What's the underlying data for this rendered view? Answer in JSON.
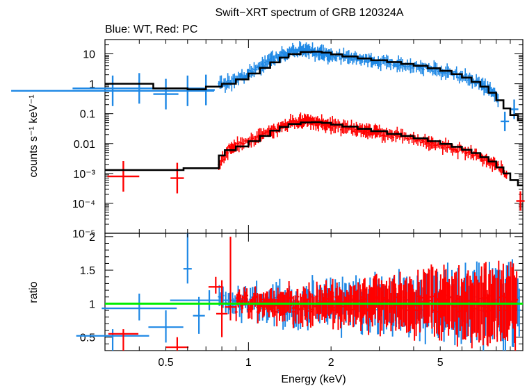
{
  "chart_data": {
    "type": "scatter",
    "title": "Swift−XRT spectrum of GRB 120324A",
    "subtitle": "Blue: WT, Red: PC",
    "xlabel": "Energy (keV)",
    "xscale": "log",
    "xlim": [
      0.3,
      10
    ],
    "x_ticks": [
      {
        "value": 0.5,
        "label": "0.5"
      },
      {
        "value": 1,
        "label": "1"
      },
      {
        "value": 2,
        "label": "2"
      },
      {
        "value": 5,
        "label": "5"
      }
    ],
    "colors": {
      "wt": "#1e88e5",
      "pc": "#ff0000",
      "model": "#000000",
      "unity": "#00ee00"
    },
    "panels": {
      "spectrum": {
        "ylabel": "counts s⁻¹ keV⁻¹",
        "yscale": "log",
        "ylim": [
          1e-05,
          30
        ],
        "y_ticks": [
          {
            "value": 10,
            "label": "10"
          },
          {
            "value": 1,
            "label": "1"
          },
          {
            "value": 0.1,
            "label": "0.1"
          },
          {
            "value": 0.01,
            "label": "0.01"
          },
          {
            "value": 0.001,
            "label": "10⁻³"
          },
          {
            "value": 0.0001,
            "label": "10⁻⁴"
          },
          {
            "value": 1e-05,
            "label": "10⁻⁵"
          }
        ],
        "series": [
          {
            "color_key": "wt",
            "kind": "binned",
            "low": [
              [
                0.32,
                0.58,
                0.75
              ],
              [
                0.4,
                0.7,
                0.7
              ],
              [
                0.5,
                0.45,
                0.45
              ],
              [
                0.6,
                0.58,
                0.58
              ],
              [
                0.7,
                0.62,
                0.65
              ]
            ],
            "points": [
              [
                0.78,
                0.9
              ],
              [
                0.85,
                1.1
              ],
              [
                0.93,
                1.6
              ],
              [
                1.0,
                2.2
              ],
              [
                1.1,
                3.5
              ],
              [
                1.2,
                6.0
              ],
              [
                1.3,
                9.0
              ],
              [
                1.4,
                11
              ],
              [
                1.5,
                12
              ],
              [
                1.6,
                13
              ],
              [
                1.7,
                12
              ],
              [
                1.8,
                11
              ],
              [
                1.9,
                10
              ],
              [
                2.0,
                9
              ],
              [
                2.2,
                8
              ],
              [
                2.4,
                7.5
              ],
              [
                2.6,
                6.5
              ],
              [
                2.8,
                6
              ],
              [
                3.0,
                5.5
              ],
              [
                3.3,
                5
              ],
              [
                3.6,
                4.6
              ],
              [
                4.0,
                4
              ],
              [
                4.4,
                3.5
              ],
              [
                4.8,
                3.0
              ],
              [
                5.3,
                2.5
              ],
              [
                5.8,
                2.0
              ],
              [
                6.4,
                1.5
              ],
              [
                7.0,
                1.0
              ],
              [
                7.6,
                0.6
              ],
              [
                8.2,
                0.3
              ]
            ],
            "tail": [
              [
                8.6,
                0.055
              ],
              [
                9.3,
                0.14
              ]
            ]
          },
          {
            "color_key": "pc",
            "kind": "binned",
            "low": [
              [
                0.35,
                0.0008,
                0.4
              ],
              [
                0.55,
                0.0007,
                0.52
              ]
            ],
            "points": [
              [
                0.78,
                0.0018
              ],
              [
                0.85,
                0.007
              ],
              [
                0.9,
                0.008
              ],
              [
                1.0,
                0.011
              ],
              [
                1.1,
                0.016
              ],
              [
                1.2,
                0.025
              ],
              [
                1.3,
                0.035
              ],
              [
                1.4,
                0.045
              ],
              [
                1.5,
                0.052
              ],
              [
                1.6,
                0.055
              ],
              [
                1.7,
                0.055
              ],
              [
                1.8,
                0.05
              ],
              [
                1.9,
                0.045
              ],
              [
                2.0,
                0.04
              ],
              [
                2.2,
                0.035
              ],
              [
                2.4,
                0.031
              ],
              [
                2.6,
                0.027
              ],
              [
                2.8,
                0.025
              ],
              [
                3.0,
                0.022
              ],
              [
                3.3,
                0.02
              ],
              [
                3.6,
                0.018
              ],
              [
                4.0,
                0.015
              ],
              [
                4.4,
                0.012
              ],
              [
                4.8,
                0.01
              ],
              [
                5.3,
                0.008
              ],
              [
                5.8,
                0.0065
              ],
              [
                6.4,
                0.005
              ],
              [
                7.0,
                0.0035
              ],
              [
                7.6,
                0.0025
              ],
              [
                8.2,
                0.0015
              ],
              [
                8.8,
                0.0009
              ]
            ],
            "tail": [
              [
                9.8,
                0.00012
              ]
            ]
          },
          {
            "color_key": "model",
            "kind": "step_model",
            "points": [
              [
                0.3,
                1.0
              ],
              [
                0.4,
                1.0
              ],
              [
                0.45,
                0.7
              ],
              [
                0.6,
                0.65
              ],
              [
                0.7,
                0.8
              ],
              [
                0.8,
                1.0
              ],
              [
                0.9,
                1.4
              ],
              [
                1.0,
                2.2
              ],
              [
                1.1,
                3.4
              ],
              [
                1.2,
                5.2
              ],
              [
                1.3,
                7.5
              ],
              [
                1.4,
                9.8
              ],
              [
                1.55,
                11.5
              ],
              [
                1.7,
                11.8
              ],
              [
                1.85,
                11
              ],
              [
                2.0,
                9.6
              ],
              [
                2.2,
                8.2
              ],
              [
                2.5,
                7.0
              ],
              [
                2.8,
                6.1
              ],
              [
                3.2,
                5.3
              ],
              [
                3.6,
                4.6
              ],
              [
                4.0,
                4.0
              ],
              [
                4.5,
                3.3
              ],
              [
                5.0,
                2.7
              ],
              [
                5.5,
                2.1
              ],
              [
                6.0,
                1.6
              ],
              [
                6.5,
                1.15
              ],
              [
                7.0,
                0.8
              ],
              [
                7.5,
                0.5
              ],
              [
                8.0,
                0.28
              ],
              [
                8.5,
                0.15
              ],
              [
                9.0,
                0.09
              ],
              [
                9.6,
                0.06
              ],
              [
                10,
                0.06
              ]
            ]
          },
          {
            "color_key": "model",
            "kind": "step_model",
            "points": [
              [
                0.3,
                0.0013
              ],
              [
                0.55,
                0.0013
              ],
              [
                0.58,
                0.0015
              ],
              [
                0.72,
                0.0015
              ],
              [
                0.78,
                0.004
              ],
              [
                0.82,
                0.006
              ],
              [
                0.9,
                0.008
              ],
              [
                1.0,
                0.012
              ],
              [
                1.1,
                0.018
              ],
              [
                1.2,
                0.027
              ],
              [
                1.3,
                0.036
              ],
              [
                1.4,
                0.045
              ],
              [
                1.55,
                0.051
              ],
              [
                1.7,
                0.052
              ],
              [
                1.85,
                0.049
              ],
              [
                2.0,
                0.043
              ],
              [
                2.2,
                0.037
              ],
              [
                2.5,
                0.031
              ],
              [
                2.8,
                0.026
              ],
              [
                3.2,
                0.021
              ],
              [
                3.6,
                0.018
              ],
              [
                4.0,
                0.015
              ],
              [
                4.5,
                0.012
              ],
              [
                5.0,
                0.0097
              ],
              [
                5.5,
                0.0078
              ],
              [
                6.0,
                0.0062
              ],
              [
                6.5,
                0.0048
              ],
              [
                7.0,
                0.0035
              ],
              [
                7.5,
                0.0025
              ],
              [
                8.0,
                0.0016
              ],
              [
                8.5,
                0.001
              ],
              [
                9.0,
                0.0006
              ],
              [
                9.6,
                0.0004
              ],
              [
                10,
                0.0004
              ]
            ]
          }
        ]
      },
      "ratio": {
        "ylabel": "ratio",
        "yscale": "linear",
        "ylim": [
          0.3,
          2.05
        ],
        "y_ticks": [
          {
            "value": 0.5,
            "label": "0.5"
          },
          {
            "value": 1,
            "label": "1"
          },
          {
            "value": 1.5,
            "label": "1.5"
          },
          {
            "value": 2,
            "label": "2"
          }
        ],
        "unity_line": 1,
        "series": [
          {
            "color_key": "wt",
            "low": [
              [
                0.32,
                0.52,
                0.55,
                0.3,
                0.62
              ],
              [
                0.4,
                0.93,
                0.7,
                0.75,
                1.15
              ],
              [
                0.5,
                0.65,
                0.4,
                0.42,
                0.9
              ],
              [
                0.6,
                1.52,
                0.6,
                1.3,
                2.05
              ],
              [
                0.66,
                0.82,
                0.68,
                0.55,
                1.1
              ],
              [
                0.72,
                1.05,
                0.4,
                0.9,
                1.2
              ]
            ],
            "noise": {
              "x_min": 0.78,
              "x_max": 9.8,
              "count": 150,
              "center": 1.0,
              "spread_low": 0.18,
              "spread_high": 0.7,
              "seed": 7
            }
          },
          {
            "color_key": "pc",
            "low": [
              [
                0.35,
                0.55,
                0.42,
                0.3,
                0.62
              ],
              [
                0.55,
                0.35,
                0.62,
                0.3,
                0.5
              ],
              [
                0.76,
                1.25,
                0.8,
                1.15,
                1.4
              ],
              [
                0.8,
                0.85,
                0.82,
                0.5,
                1.35
              ],
              [
                0.86,
                0.95,
                0.88,
                0.75,
                2.0
              ]
            ],
            "noise": {
              "x_min": 0.9,
              "x_max": 9.5,
              "count": 260,
              "center": 1.0,
              "spread_low": 0.15,
              "spread_high": 0.65,
              "seed": 19
            }
          }
        ]
      }
    }
  }
}
